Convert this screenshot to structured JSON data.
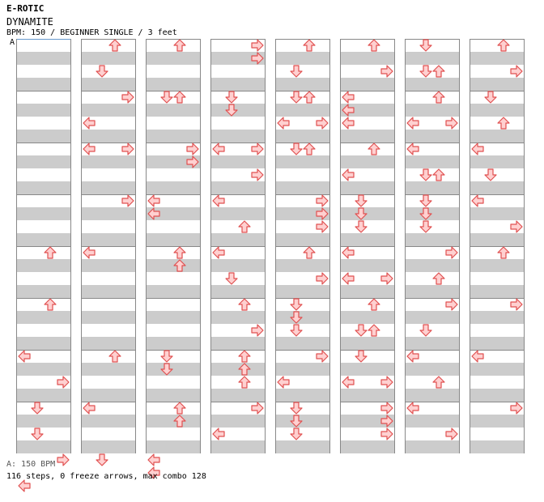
{
  "header": {
    "title": "E-ROTIC",
    "song": "DYNAMITE",
    "info": "BPM: 150 / BEGINNER SINGLE / 3 feet",
    "marker": "A"
  },
  "footer": {
    "bpm_note": "A: 150 BPM",
    "summary": "116 steps, 0 freeze arrows, max combo 128"
  },
  "colors": {
    "arrow_fill": "#ffd0d0",
    "arrow_stroke": "#e05050",
    "band": "#cccccc"
  },
  "icons": {
    "L": "left-arrow-icon",
    "D": "down-arrow-icon",
    "U": "up-arrow-icon",
    "R": "right-arrow-icon"
  },
  "columns": [
    [
      [],
      [],
      [],
      [],
      [],
      [],
      [],
      [],
      [],
      [],
      [],
      [],
      [],
      [],
      [],
      [],
      [],
      [],
      [],
      [],
      [],
      [],
      [],
      [],
      [],
      [],
      [],
      [],
      [],
      [],
      [],
      [],
      [],
      [],
      [],
      [],
      [],
      [],
      [],
      [],
      [],
      [],
      [],
      [],
      [],
      [],
      [],
      [],
      [],
      [],
      [],
      [],
      [],
      [],
      [],
      [],
      [],
      [],
      [],
      [],
      [],
      [],
      [],
      [],
      [],
      [],
      [],
      [],
      [],
      [],
      [],
      [],
      [],
      [],
      [],
      [],
      [],
      [],
      [],
      [],
      [],
      [],
      [],
      [],
      [],
      [],
      [],
      [],
      [],
      [],
      [],
      [],
      [],
      [],
      [],
      [],
      [],
      [],
      [],
      [],
      [],
      [],
      [],
      [],
      [],
      [],
      [],
      [],
      [],
      [],
      [],
      [],
      [],
      [],
      [],
      [],
      [],
      [],
      [],
      [],
      [],
      [],
      [],
      [],
      [],
      [],
      [],
      []
    ]
  ],
  "steps": [
    {
      "c": 0,
      "r": 16,
      "a": "U"
    },
    {
      "c": 0,
      "r": 20,
      "a": "U"
    },
    {
      "c": 0,
      "r": 24,
      "a": "L"
    },
    {
      "c": 0,
      "r": 26,
      "a": "R"
    },
    {
      "c": 0,
      "r": 28,
      "a": "D"
    },
    {
      "c": 0,
      "r": 30,
      "a": "D"
    },
    {
      "c": 0,
      "r": 32,
      "a": "R"
    },
    {
      "c": 0,
      "r": 34,
      "a": "L"
    },
    {
      "c": 1,
      "r": 0,
      "a": "U"
    },
    {
      "c": 1,
      "r": 2,
      "a": "D"
    },
    {
      "c": 1,
      "r": 4,
      "a": "R"
    },
    {
      "c": 1,
      "r": 6,
      "a": "L"
    },
    {
      "c": 1,
      "r": 8,
      "a": "L"
    },
    {
      "c": 1,
      "r": 8,
      "a": "R"
    },
    {
      "c": 1,
      "r": 12,
      "a": "R"
    },
    {
      "c": 1,
      "r": 16,
      "a": "L"
    },
    {
      "c": 1,
      "r": 24,
      "a": "U"
    },
    {
      "c": 1,
      "r": 28,
      "a": "L"
    },
    {
      "c": 1,
      "r": 32,
      "a": "D"
    },
    {
      "c": 2,
      "r": 0,
      "a": "U"
    },
    {
      "c": 2,
      "r": 4,
      "a": "D"
    },
    {
      "c": 2,
      "r": 4,
      "a": "U"
    },
    {
      "c": 2,
      "r": 8,
      "a": "R"
    },
    {
      "c": 2,
      "r": 9,
      "a": "R"
    },
    {
      "c": 2,
      "r": 12,
      "a": "L"
    },
    {
      "c": 2,
      "r": 13,
      "a": "L"
    },
    {
      "c": 2,
      "r": 16,
      "a": "U"
    },
    {
      "c": 2,
      "r": 17,
      "a": "U"
    },
    {
      "c": 2,
      "r": 24,
      "a": "D"
    },
    {
      "c": 2,
      "r": 25,
      "a": "D"
    },
    {
      "c": 2,
      "r": 28,
      "a": "U"
    },
    {
      "c": 2,
      "r": 29,
      "a": "U"
    },
    {
      "c": 2,
      "r": 32,
      "a": "L"
    },
    {
      "c": 2,
      "r": 33,
      "a": "L"
    },
    {
      "c": 3,
      "r": 0,
      "a": "R"
    },
    {
      "c": 3,
      "r": 1,
      "a": "R"
    },
    {
      "c": 3,
      "r": 4,
      "a": "D"
    },
    {
      "c": 3,
      "r": 5,
      "a": "D"
    },
    {
      "c": 3,
      "r": 8,
      "a": "L"
    },
    {
      "c": 3,
      "r": 8,
      "a": "R"
    },
    {
      "c": 3,
      "r": 10,
      "a": "R"
    },
    {
      "c": 3,
      "r": 12,
      "a": "L"
    },
    {
      "c": 3,
      "r": 14,
      "a": "U"
    },
    {
      "c": 3,
      "r": 16,
      "a": "L"
    },
    {
      "c": 3,
      "r": 18,
      "a": "D"
    },
    {
      "c": 3,
      "r": 20,
      "a": "U"
    },
    {
      "c": 3,
      "r": 22,
      "a": "R"
    },
    {
      "c": 3,
      "r": 24,
      "a": "U"
    },
    {
      "c": 3,
      "r": 25,
      "a": "U"
    },
    {
      "c": 3,
      "r": 26,
      "a": "U"
    },
    {
      "c": 3,
      "r": 28,
      "a": "R"
    },
    {
      "c": 3,
      "r": 30,
      "a": "L"
    },
    {
      "c": 4,
      "r": 0,
      "a": "U"
    },
    {
      "c": 4,
      "r": 2,
      "a": "D"
    },
    {
      "c": 4,
      "r": 4,
      "a": "D"
    },
    {
      "c": 4,
      "r": 4,
      "a": "U"
    },
    {
      "c": 4,
      "r": 6,
      "a": "L"
    },
    {
      "c": 4,
      "r": 6,
      "a": "R"
    },
    {
      "c": 4,
      "r": 8,
      "a": "D"
    },
    {
      "c": 4,
      "r": 8,
      "a": "U"
    },
    {
      "c": 4,
      "r": 12,
      "a": "R"
    },
    {
      "c": 4,
      "r": 13,
      "a": "R"
    },
    {
      "c": 4,
      "r": 14,
      "a": "R"
    },
    {
      "c": 4,
      "r": 16,
      "a": "U"
    },
    {
      "c": 4,
      "r": 18,
      "a": "R"
    },
    {
      "c": 4,
      "r": 20,
      "a": "D"
    },
    {
      "c": 4,
      "r": 21,
      "a": "D"
    },
    {
      "c": 4,
      "r": 22,
      "a": "D"
    },
    {
      "c": 4,
      "r": 24,
      "a": "R"
    },
    {
      "c": 4,
      "r": 26,
      "a": "L"
    },
    {
      "c": 4,
      "r": 28,
      "a": "D"
    },
    {
      "c": 4,
      "r": 29,
      "a": "D"
    },
    {
      "c": 4,
      "r": 30,
      "a": "D"
    },
    {
      "c": 5,
      "r": 0,
      "a": "U"
    },
    {
      "c": 5,
      "r": 2,
      "a": "R"
    },
    {
      "c": 5,
      "r": 4,
      "a": "L"
    },
    {
      "c": 5,
      "r": 5,
      "a": "L"
    },
    {
      "c": 5,
      "r": 6,
      "a": "L"
    },
    {
      "c": 5,
      "r": 8,
      "a": "U"
    },
    {
      "c": 5,
      "r": 10,
      "a": "L"
    },
    {
      "c": 5,
      "r": 12,
      "a": "D"
    },
    {
      "c": 5,
      "r": 13,
      "a": "D"
    },
    {
      "c": 5,
      "r": 14,
      "a": "D"
    },
    {
      "c": 5,
      "r": 16,
      "a": "L"
    },
    {
      "c": 5,
      "r": 18,
      "a": "L"
    },
    {
      "c": 5,
      "r": 18,
      "a": "R"
    },
    {
      "c": 5,
      "r": 20,
      "a": "U"
    },
    {
      "c": 5,
      "r": 22,
      "a": "D"
    },
    {
      "c": 5,
      "r": 22,
      "a": "U"
    },
    {
      "c": 5,
      "r": 24,
      "a": "D"
    },
    {
      "c": 5,
      "r": 26,
      "a": "L"
    },
    {
      "c": 5,
      "r": 26,
      "a": "R"
    },
    {
      "c": 5,
      "r": 28,
      "a": "R"
    },
    {
      "c": 5,
      "r": 29,
      "a": "R"
    },
    {
      "c": 5,
      "r": 30,
      "a": "R"
    },
    {
      "c": 6,
      "r": 0,
      "a": "D"
    },
    {
      "c": 6,
      "r": 2,
      "a": "D"
    },
    {
      "c": 6,
      "r": 2,
      "a": "U"
    },
    {
      "c": 6,
      "r": 4,
      "a": "U"
    },
    {
      "c": 6,
      "r": 6,
      "a": "L"
    },
    {
      "c": 6,
      "r": 6,
      "a": "R"
    },
    {
      "c": 6,
      "r": 8,
      "a": "L"
    },
    {
      "c": 6,
      "r": 10,
      "a": "D"
    },
    {
      "c": 6,
      "r": 10,
      "a": "U"
    },
    {
      "c": 6,
      "r": 12,
      "a": "D"
    },
    {
      "c": 6,
      "r": 13,
      "a": "D"
    },
    {
      "c": 6,
      "r": 14,
      "a": "D"
    },
    {
      "c": 6,
      "r": 16,
      "a": "R"
    },
    {
      "c": 6,
      "r": 18,
      "a": "U"
    },
    {
      "c": 6,
      "r": 20,
      "a": "R"
    },
    {
      "c": 6,
      "r": 22,
      "a": "D"
    },
    {
      "c": 6,
      "r": 24,
      "a": "L"
    },
    {
      "c": 6,
      "r": 26,
      "a": "U"
    },
    {
      "c": 6,
      "r": 28,
      "a": "L"
    },
    {
      "c": 6,
      "r": 30,
      "a": "R"
    },
    {
      "c": 7,
      "r": 0,
      "a": "U"
    },
    {
      "c": 7,
      "r": 2,
      "a": "R"
    },
    {
      "c": 7,
      "r": 4,
      "a": "D"
    },
    {
      "c": 7,
      "r": 6,
      "a": "U"
    },
    {
      "c": 7,
      "r": 8,
      "a": "L"
    },
    {
      "c": 7,
      "r": 10,
      "a": "D"
    },
    {
      "c": 7,
      "r": 12,
      "a": "L"
    },
    {
      "c": 7,
      "r": 14,
      "a": "R"
    },
    {
      "c": 7,
      "r": 16,
      "a": "U"
    },
    {
      "c": 7,
      "r": 20,
      "a": "R"
    },
    {
      "c": 7,
      "r": 24,
      "a": "L"
    },
    {
      "c": 7,
      "r": 28,
      "a": "R"
    }
  ]
}
